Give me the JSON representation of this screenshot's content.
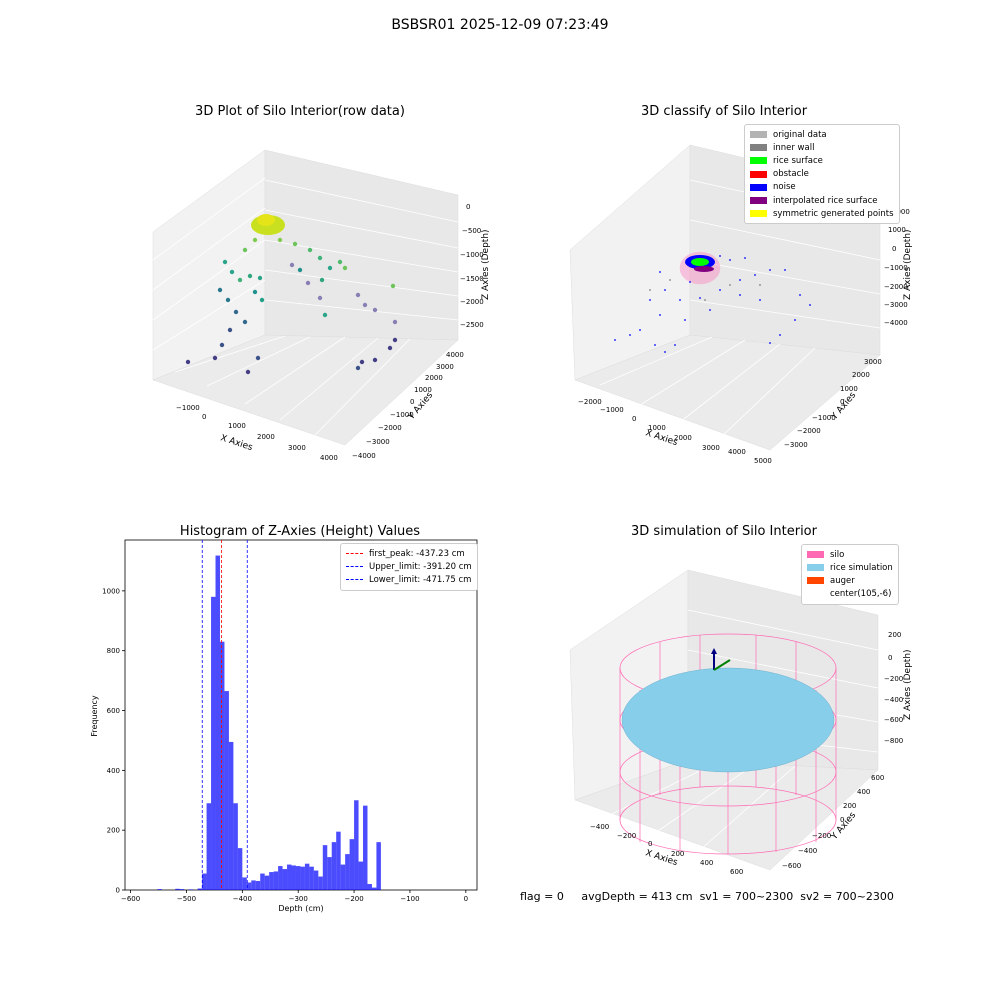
{
  "figure": {
    "suptitle": "BSBSR01 2025-12-09 07:23:49"
  },
  "panels": {
    "raw": {
      "title": "3D Plot of Silo Interior(row data)",
      "xlabel": "X Axies",
      "ylabel": "Y Axies",
      "zlabel": "Z Axies (Depth)",
      "xticks": [
        "−1000",
        "0",
        "1000",
        "2000",
        "3000",
        "4000"
      ],
      "yticks": [
        "−4000",
        "−3000",
        "−2000",
        "−1000",
        "0",
        "1000",
        "2000",
        "3000",
        "4000"
      ],
      "zticks": [
        "0",
        "−500",
        "−1000",
        "−1500",
        "−2000",
        "−2500"
      ]
    },
    "classify": {
      "title": "3D classify of Silo Interior",
      "xlabel": "X Axies",
      "ylabel": "Y Axies",
      "zlabel": "Z Axies (Depth)",
      "xticks": [
        "−2000",
        "−1000",
        "0",
        "1000",
        "2000",
        "3000",
        "4000",
        "5000"
      ],
      "yticks": [
        "−3000",
        "−2000",
        "−1000",
        "0",
        "1000",
        "2000",
        "3000"
      ],
      "zticks": [
        "2000",
        "1000",
        "0",
        "−1000",
        "−2000",
        "−3000",
        "−4000"
      ],
      "legend": [
        {
          "label": "original data",
          "color": "#b3b3b3"
        },
        {
          "label": "inner wall",
          "color": "#808080"
        },
        {
          "label": "rice surface",
          "color": "#00ff00"
        },
        {
          "label": "obstacle",
          "color": "#ff0000"
        },
        {
          "label": "noise",
          "color": "#0000ff"
        },
        {
          "label": "interpolated rice surface",
          "color": "#800080"
        },
        {
          "label": "symmetric generated points",
          "color": "#ffff00"
        }
      ]
    },
    "simulation": {
      "title": "3D simulation of Silo Interior",
      "xlabel": "X Axies",
      "ylabel": "Y Axies",
      "zlabel": "Z Axies (Depth)",
      "xticks": [
        "−400",
        "−200",
        "0",
        "200",
        "400",
        "600"
      ],
      "yticks": [
        "−600",
        "−400",
        "−200",
        "0",
        "200",
        "400",
        "600"
      ],
      "zticks": [
        "200",
        "0",
        "−200",
        "−400",
        "−600",
        "−800"
      ],
      "legend": [
        {
          "label": "silo",
          "color": "#ff69b4"
        },
        {
          "label": "rice simulation",
          "color": "#87ceeb"
        },
        {
          "label": "auger",
          "color": "#ff4500"
        },
        {
          "label": "center(105,-6)",
          "color": "#ffffff"
        }
      ]
    }
  },
  "footer": {
    "flag": "flag = 0",
    "avg": "avgDepth = 413 cm",
    "sv1": "sv1 = 700~2300",
    "sv2": "sv2 = 700~2300"
  },
  "chart_data": {
    "type": "bar",
    "title": "Histogram of Z-Axies (Height) Values",
    "xlabel": "Depth (cm)",
    "ylabel": "Frequency",
    "xlim": [
      -610,
      20
    ],
    "ylim": [
      0,
      1170
    ],
    "bin_width": 8,
    "bar_color": "#0000ff",
    "x_ticks": [
      -600,
      -500,
      -400,
      -300,
      -200,
      -100,
      0
    ],
    "y_ticks": [
      0,
      200,
      400,
      600,
      800,
      1000
    ],
    "x_tick_labels": [
      "−600",
      "−500",
      "−400",
      "−300",
      "−200",
      "−100",
      "0"
    ],
    "y_tick_labels": [
      "0",
      "200",
      "400",
      "600",
      "800",
      "1000"
    ],
    "bins": [
      {
        "x": -552,
        "y": 3
      },
      {
        "x": -520,
        "y": 4
      },
      {
        "x": -512,
        "y": 3
      },
      {
        "x": -496,
        "y": 2
      },
      {
        "x": -480,
        "y": 5
      },
      {
        "x": -472,
        "y": 55
      },
      {
        "x": -464,
        "y": 290
      },
      {
        "x": -456,
        "y": 980
      },
      {
        "x": -448,
        "y": 1118
      },
      {
        "x": -440,
        "y": 830
      },
      {
        "x": -432,
        "y": 665
      },
      {
        "x": -424,
        "y": 495
      },
      {
        "x": -416,
        "y": 290
      },
      {
        "x": -408,
        "y": 140
      },
      {
        "x": -400,
        "y": 42
      },
      {
        "x": -392,
        "y": 25
      },
      {
        "x": -384,
        "y": 32
      },
      {
        "x": -376,
        "y": 30
      },
      {
        "x": -368,
        "y": 55
      },
      {
        "x": -360,
        "y": 48
      },
      {
        "x": -352,
        "y": 60
      },
      {
        "x": -344,
        "y": 62
      },
      {
        "x": -336,
        "y": 80
      },
      {
        "x": -328,
        "y": 70
      },
      {
        "x": -320,
        "y": 85
      },
      {
        "x": -312,
        "y": 82
      },
      {
        "x": -304,
        "y": 80
      },
      {
        "x": -296,
        "y": 78
      },
      {
        "x": -288,
        "y": 88
      },
      {
        "x": -280,
        "y": 78
      },
      {
        "x": -272,
        "y": 65
      },
      {
        "x": -264,
        "y": 45
      },
      {
        "x": -256,
        "y": 150
      },
      {
        "x": -248,
        "y": 110
      },
      {
        "x": -240,
        "y": 160
      },
      {
        "x": -232,
        "y": 195
      },
      {
        "x": -224,
        "y": 85
      },
      {
        "x": -216,
        "y": 120
      },
      {
        "x": -208,
        "y": 170
      },
      {
        "x": -200,
        "y": 300
      },
      {
        "x": -192,
        "y": 95
      },
      {
        "x": -184,
        "y": 282
      },
      {
        "x": -176,
        "y": 20
      },
      {
        "x": -168,
        "y": 8
      },
      {
        "x": -160,
        "y": 160
      }
    ],
    "series": [
      {
        "name": "first_peak: -437.23 cm",
        "value": -437.23,
        "color": "#ff0000"
      },
      {
        "name": "Upper_limit: -391.20 cm",
        "value": -391.2,
        "color": "#0000ff"
      },
      {
        "name": "Lower_limit: -471.75 cm",
        "value": -471.75,
        "color": "#0000ff"
      }
    ],
    "legend_position": "top-right"
  }
}
